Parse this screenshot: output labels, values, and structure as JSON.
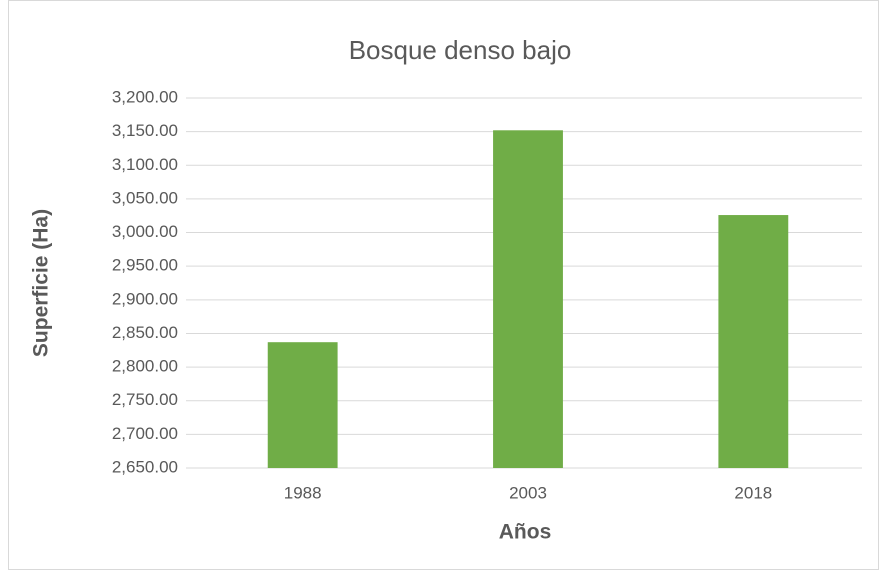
{
  "chart_data": {
    "type": "bar",
    "title": "Bosque denso bajo",
    "x_label": "Años",
    "y_label": "Superficie (Ha)",
    "categories": [
      "1988",
      "2003",
      "2018"
    ],
    "values": [
      2837,
      3152,
      3026
    ],
    "color": "#70ad47",
    "ylim": [
      2650,
      3200
    ],
    "yticks": [
      {
        "value": 2650,
        "label": "2,650.00"
      },
      {
        "value": 2700,
        "label": "2,700.00"
      },
      {
        "value": 2750,
        "label": "2,750.00"
      },
      {
        "value": 2800,
        "label": "2,800.00"
      },
      {
        "value": 2850,
        "label": "2,850.00"
      },
      {
        "value": 2900,
        "label": "2,900.00"
      },
      {
        "value": 2950,
        "label": "2,950.00"
      },
      {
        "value": 3000,
        "label": "3,000.00"
      },
      {
        "value": 3050,
        "label": "3,050.00"
      },
      {
        "value": 3100,
        "label": "3,100.00"
      },
      {
        "value": 3150,
        "label": "3,150.00"
      },
      {
        "value": 3200,
        "label": "3,200.00"
      }
    ],
    "grid": true
  }
}
